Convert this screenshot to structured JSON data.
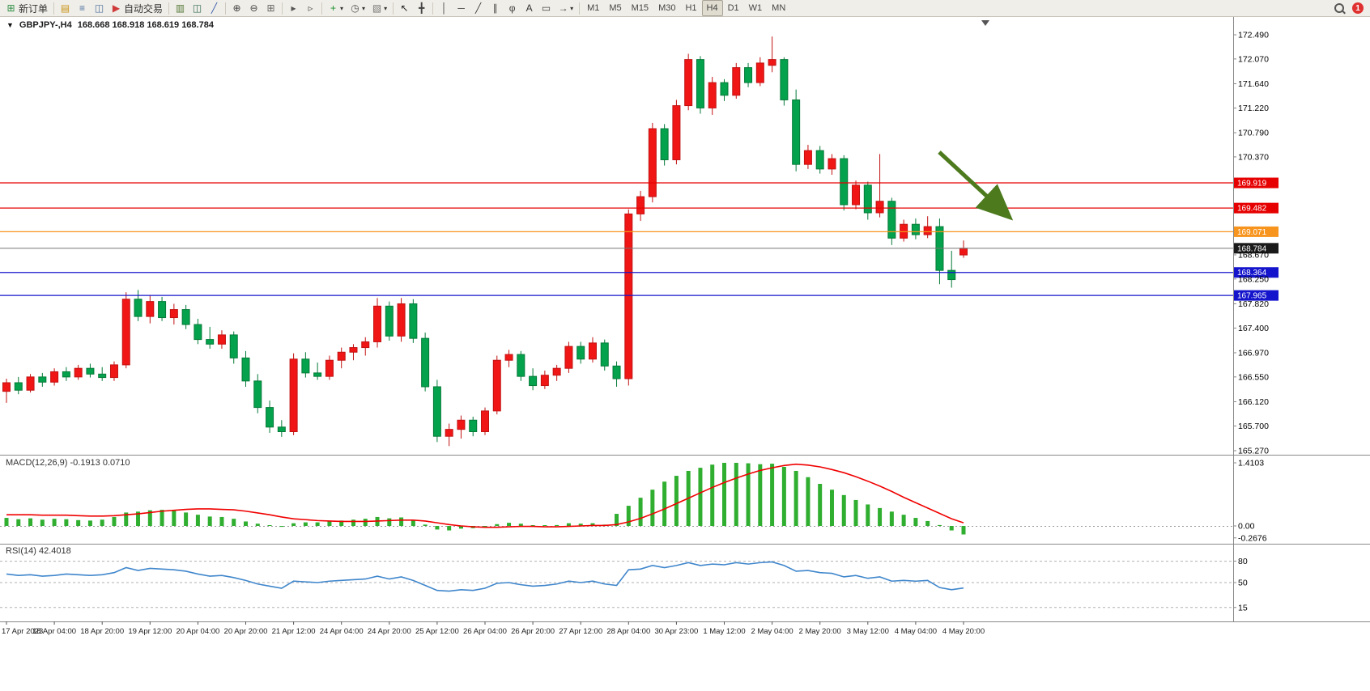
{
  "toolbar": {
    "groups": [
      [
        {
          "name": "new-order",
          "icon": "new-order-icon",
          "label": "新订单"
        }
      ],
      [
        {
          "name": "profiles",
          "icon": "profiles-icon"
        },
        {
          "name": "market-watch",
          "icon": "market-watch-icon"
        },
        {
          "name": "navigator",
          "icon": "navigator-icon"
        },
        {
          "name": "auto-trading",
          "icon": "auto-trading-icon",
          "label": "自动交易"
        }
      ],
      [
        {
          "name": "bar-chart-mode",
          "icon": "bars-icon"
        },
        {
          "name": "candle-chart-mode",
          "icon": "candles-icon"
        },
        {
          "name": "line-chart-mode",
          "icon": "line-chart-icon"
        }
      ],
      [
        {
          "name": "zoom-in",
          "icon": "zoom-in-icon"
        },
        {
          "name": "zoom-out",
          "icon": "zoom-out-icon"
        },
        {
          "name": "tile-windows",
          "icon": "tile-windows-icon"
        }
      ],
      [
        {
          "name": "auto-scroll",
          "icon": "auto-scroll-icon"
        },
        {
          "name": "chart-shift",
          "icon": "chart-shift-icon"
        }
      ],
      [
        {
          "name": "indicators",
          "icon": "indicators-icon",
          "caret": true
        },
        {
          "name": "periods",
          "icon": "periods-icon",
          "caret": true
        },
        {
          "name": "templates",
          "icon": "templates-icon",
          "caret": true
        }
      ],
      [
        {
          "name": "cursor",
          "icon": "cursor-icon"
        },
        {
          "name": "crosshair",
          "icon": "crosshair-icon"
        }
      ],
      [
        {
          "name": "vertical-line",
          "icon": "vline-icon"
        },
        {
          "name": "horizontal-line",
          "icon": "hline-icon"
        },
        {
          "name": "trendline",
          "icon": "trendline-icon"
        },
        {
          "name": "equidistant-channel",
          "icon": "channel-icon"
        },
        {
          "name": "fibonacci",
          "icon": "fibonacci-icon"
        },
        {
          "name": "text",
          "icon": "text-icon"
        },
        {
          "name": "text-label",
          "icon": "label-icon"
        },
        {
          "name": "arrows",
          "icon": "arrows-icon",
          "caret": true
        }
      ]
    ],
    "timeframes": {
      "items": [
        "M1",
        "M5",
        "M15",
        "M30",
        "H1",
        "H4",
        "D1",
        "W1",
        "MN"
      ],
      "active": "H4"
    },
    "notification_count": "1"
  },
  "chart": {
    "title": "GBPJPY-,H4",
    "ohlc_text": "168.668 168.918 168.619 168.784",
    "one_click_icon": "triangle-down-icon",
    "current_bar": {
      "open": 168.668,
      "high": 168.918,
      "low": 168.619,
      "close": 168.784
    },
    "price_axis_labels": [
      "172.490",
      "172.070",
      "171.640",
      "171.220",
      "170.790",
      "170.370",
      "168.670",
      "168.250",
      "167.820",
      "167.400",
      "166.970",
      "166.550",
      "166.120",
      "165.700",
      "165.270"
    ],
    "horizontal_lines": [
      {
        "price": 169.919,
        "label": "169.919",
        "color": "#e60000"
      },
      {
        "price": 169.482,
        "label": "169.482",
        "color": "#e60000"
      },
      {
        "price": 169.071,
        "label": "169.071",
        "color": "#f7941d"
      },
      {
        "price": 168.364,
        "label": "168.364",
        "color": "#1414cc"
      },
      {
        "price": 167.965,
        "label": "167.965",
        "color": "#1414cc"
      }
    ],
    "bid_line": {
      "price": 168.784,
      "label": "168.784",
      "color": "#1a1a1a"
    },
    "time_axis_labels": [
      "17 Apr 2023",
      "18 Apr 04:00",
      "18 Apr 20:00",
      "19 Apr 12:00",
      "20 Apr 04:00",
      "20 Apr 20:00",
      "21 Apr 12:00",
      "24 Apr 04:00",
      "24 Apr 20:00",
      "25 Apr 12:00",
      "26 Apr 04:00",
      "26 Apr 20:00",
      "27 Apr 12:00",
      "28 Apr 04:00",
      "30 Apr 23:00",
      "1 May 12:00",
      "2 May 04:00",
      "2 May 20:00",
      "3 May 12:00",
      "4 May 04:00",
      "4 May 20:00"
    ],
    "arrow_annotation": {
      "color": "#4c7a1d",
      "direction": "down-right"
    }
  },
  "chart_data": {
    "type": "candlestick",
    "symbol": "GBPJPY-",
    "timeframe": "H4",
    "price_range": [
      165.27,
      172.49
    ],
    "up_color": "#f01616",
    "down_color": "#04a24c",
    "candles": [
      [
        166.3,
        166.52,
        166.1,
        166.45
      ],
      [
        166.45,
        166.55,
        166.25,
        166.32
      ],
      [
        166.32,
        166.6,
        166.28,
        166.55
      ],
      [
        166.55,
        166.62,
        166.38,
        166.46
      ],
      [
        166.46,
        166.7,
        166.4,
        166.64
      ],
      [
        166.64,
        166.72,
        166.48,
        166.55
      ],
      [
        166.55,
        166.76,
        166.5,
        166.7
      ],
      [
        166.7,
        166.78,
        166.54,
        166.6
      ],
      [
        166.6,
        166.72,
        166.48,
        166.54
      ],
      [
        166.54,
        166.82,
        166.48,
        166.76
      ],
      [
        166.76,
        168.02,
        166.7,
        167.9
      ],
      [
        167.9,
        168.06,
        167.52,
        167.6
      ],
      [
        167.6,
        167.96,
        167.48,
        167.86
      ],
      [
        167.86,
        167.94,
        167.52,
        167.58
      ],
      [
        167.58,
        167.82,
        167.46,
        167.72
      ],
      [
        167.72,
        167.8,
        167.38,
        167.46
      ],
      [
        167.46,
        167.56,
        167.12,
        167.2
      ],
      [
        167.2,
        167.42,
        167.04,
        167.12
      ],
      [
        167.12,
        167.36,
        167.04,
        167.28
      ],
      [
        167.28,
        167.34,
        166.78,
        166.88
      ],
      [
        166.88,
        167.0,
        166.38,
        166.48
      ],
      [
        166.48,
        166.6,
        165.92,
        166.02
      ],
      [
        166.02,
        166.14,
        165.58,
        165.68
      ],
      [
        165.68,
        165.8,
        165.51,
        165.6
      ],
      [
        165.6,
        166.96,
        165.54,
        166.86
      ],
      [
        166.86,
        166.98,
        166.54,
        166.62
      ],
      [
        166.62,
        166.8,
        166.5,
        166.56
      ],
      [
        166.56,
        166.92,
        166.5,
        166.84
      ],
      [
        166.84,
        167.06,
        166.7,
        166.98
      ],
      [
        166.98,
        167.12,
        166.84,
        167.06
      ],
      [
        167.06,
        167.24,
        166.92,
        167.16
      ],
      [
        167.16,
        167.92,
        167.06,
        167.78
      ],
      [
        167.78,
        167.86,
        167.18,
        167.26
      ],
      [
        167.26,
        167.92,
        167.16,
        167.82
      ],
      [
        167.82,
        167.9,
        167.14,
        167.22
      ],
      [
        167.22,
        167.32,
        166.3,
        166.38
      ],
      [
        166.38,
        166.5,
        165.42,
        165.52
      ],
      [
        165.52,
        165.74,
        165.35,
        165.64
      ],
      [
        165.64,
        165.88,
        165.48,
        165.8
      ],
      [
        165.8,
        165.86,
        165.52,
        165.6
      ],
      [
        165.6,
        166.02,
        165.54,
        165.96
      ],
      [
        165.96,
        166.92,
        165.9,
        166.84
      ],
      [
        166.84,
        167.02,
        166.72,
        166.94
      ],
      [
        166.94,
        167.0,
        166.48,
        166.56
      ],
      [
        166.56,
        166.7,
        166.32,
        166.4
      ],
      [
        166.4,
        166.66,
        166.34,
        166.58
      ],
      [
        166.58,
        166.76,
        166.48,
        166.7
      ],
      [
        166.7,
        167.16,
        166.62,
        167.08
      ],
      [
        167.08,
        167.16,
        166.78,
        166.86
      ],
      [
        166.86,
        167.24,
        166.8,
        167.14
      ],
      [
        167.14,
        167.2,
        166.66,
        166.74
      ],
      [
        166.74,
        166.82,
        166.38,
        166.52
      ],
      [
        166.52,
        169.46,
        166.4,
        169.38
      ],
      [
        169.38,
        169.78,
        169.26,
        169.68
      ],
      [
        169.68,
        170.96,
        169.58,
        170.86
      ],
      [
        170.86,
        170.94,
        170.22,
        170.32
      ],
      [
        170.32,
        171.36,
        170.24,
        171.26
      ],
      [
        171.26,
        172.16,
        171.18,
        172.06
      ],
      [
        172.06,
        172.12,
        171.12,
        171.22
      ],
      [
        171.22,
        171.76,
        171.1,
        171.66
      ],
      [
        171.66,
        171.72,
        171.34,
        171.44
      ],
      [
        171.44,
        172.0,
        171.38,
        171.92
      ],
      [
        171.92,
        172.0,
        171.58,
        171.66
      ],
      [
        171.66,
        172.1,
        171.6,
        172.0
      ],
      [
        171.96,
        172.46,
        171.84,
        172.06
      ],
      [
        172.06,
        172.1,
        171.26,
        171.36
      ],
      [
        171.36,
        171.54,
        170.12,
        170.24
      ],
      [
        170.24,
        170.58,
        170.16,
        170.48
      ],
      [
        170.48,
        170.56,
        170.08,
        170.16
      ],
      [
        170.16,
        170.42,
        170.06,
        170.34
      ],
      [
        170.34,
        170.4,
        169.44,
        169.54
      ],
      [
        169.54,
        169.96,
        169.46,
        169.88
      ],
      [
        169.88,
        169.94,
        169.28,
        169.4
      ],
      [
        169.4,
        170.42,
        169.32,
        169.6
      ],
      [
        169.6,
        169.66,
        168.84,
        168.96
      ],
      [
        168.96,
        169.28,
        168.9,
        169.2
      ],
      [
        169.2,
        169.3,
        168.94,
        169.02
      ],
      [
        169.02,
        169.34,
        168.96,
        169.16
      ],
      [
        169.16,
        169.3,
        168.16,
        168.4
      ],
      [
        168.4,
        168.74,
        168.1,
        168.24
      ],
      [
        168.668,
        168.918,
        168.619,
        168.784
      ]
    ],
    "indicators": {
      "macd": {
        "label": "MACD(12,26,9)",
        "value_main": "-0.1913",
        "value_signal": "0.0710",
        "axis_labels": [
          "1.4103",
          "0.00",
          "-0.2676"
        ],
        "scale_max": 1.4103,
        "histogram_color": "#2fae2f",
        "signal_color": "#f00000",
        "histogram": [
          0.18,
          0.15,
          0.17,
          0.14,
          0.16,
          0.15,
          0.13,
          0.12,
          0.14,
          0.2,
          0.3,
          0.32,
          0.35,
          0.36,
          0.34,
          0.3,
          0.25,
          0.21,
          0.2,
          0.16,
          0.1,
          0.05,
          0.01,
          -0.02,
          0.06,
          0.08,
          0.08,
          0.1,
          0.12,
          0.14,
          0.16,
          0.2,
          0.17,
          0.19,
          0.13,
          0.03,
          -0.08,
          -0.1,
          -0.06,
          -0.05,
          -0.02,
          0.04,
          0.07,
          0.05,
          0.01,
          0.0,
          0.02,
          0.06,
          0.05,
          0.06,
          0.03,
          0.27,
          0.45,
          0.63,
          0.81,
          0.99,
          1.12,
          1.23,
          1.3,
          1.37,
          1.41,
          1.41,
          1.4,
          1.38,
          1.39,
          1.32,
          1.23,
          1.09,
          0.94,
          0.81,
          0.69,
          0.58,
          0.48,
          0.4,
          0.32,
          0.25,
          0.18,
          0.11,
          0.02,
          -0.1,
          -0.19
        ],
        "signal": [
          0.25,
          0.25,
          0.25,
          0.24,
          0.24,
          0.24,
          0.23,
          0.22,
          0.22,
          0.23,
          0.25,
          0.27,
          0.3,
          0.33,
          0.35,
          0.37,
          0.38,
          0.38,
          0.37,
          0.36,
          0.33,
          0.29,
          0.25,
          0.2,
          0.16,
          0.14,
          0.12,
          0.11,
          0.1,
          0.1,
          0.1,
          0.11,
          0.12,
          0.13,
          0.13,
          0.11,
          0.07,
          0.03,
          0.0,
          -0.02,
          -0.03,
          -0.03,
          -0.02,
          -0.01,
          -0.01,
          -0.02,
          -0.02,
          -0.01,
          0.0,
          0.01,
          0.01,
          0.03,
          0.09,
          0.17,
          0.27,
          0.38,
          0.5,
          0.62,
          0.74,
          0.86,
          0.97,
          1.07,
          1.16,
          1.24,
          1.3,
          1.35,
          1.38,
          1.36,
          1.32,
          1.26,
          1.19,
          1.1,
          1.0,
          0.89,
          0.77,
          0.64,
          0.52,
          0.4,
          0.28,
          0.16,
          0.07
        ]
      },
      "rsi": {
        "label": "RSI(14)",
        "value": "42.4018",
        "levels": [
          80,
          50,
          15
        ],
        "axis_labels": [
          "80",
          "50",
          "15"
        ],
        "line_color": "#3f86cc",
        "values": [
          62,
          60,
          61,
          59,
          60,
          62,
          61,
          60,
          61,
          64,
          71,
          67,
          70,
          69,
          68,
          66,
          62,
          59,
          60,
          57,
          53,
          48,
          45,
          42,
          52,
          51,
          50,
          52,
          53,
          54,
          55,
          59,
          55,
          58,
          53,
          46,
          39,
          38,
          40,
          39,
          42,
          49,
          50,
          47,
          45,
          46,
          48,
          52,
          50,
          52,
          48,
          46,
          68,
          69,
          74,
          71,
          74,
          78,
          74,
          76,
          75,
          78,
          76,
          78,
          79,
          74,
          66,
          67,
          64,
          63,
          58,
          60,
          56,
          58,
          52,
          53,
          52,
          53,
          43,
          40,
          42.4
        ]
      }
    }
  }
}
